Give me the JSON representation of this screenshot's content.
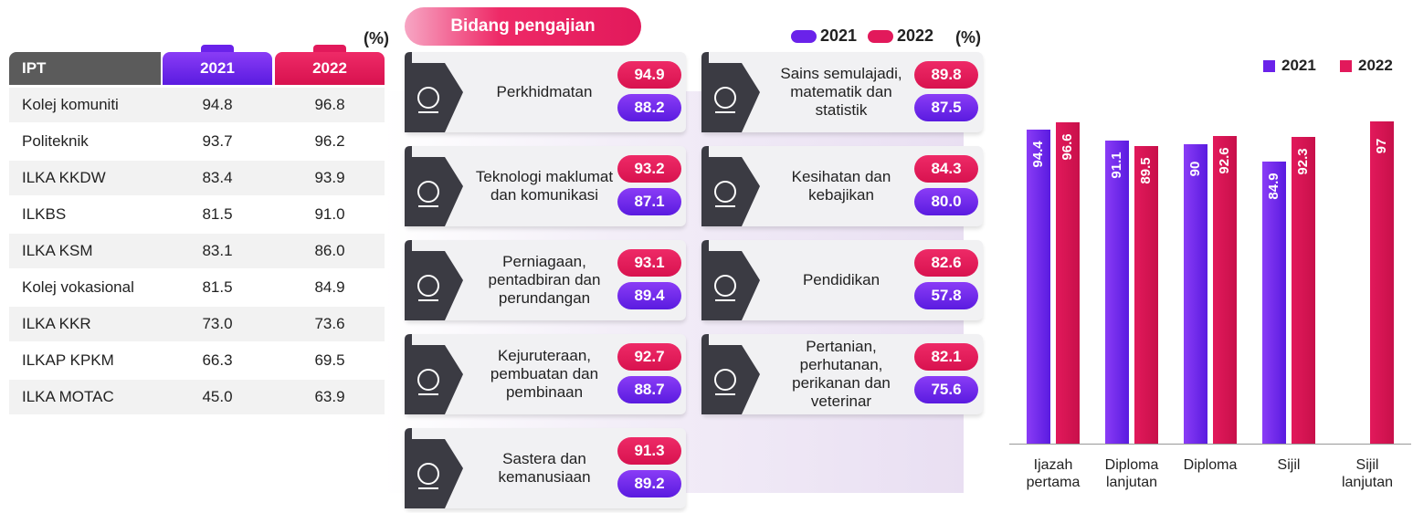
{
  "table": {
    "unit": "(%)",
    "header": [
      "IPT",
      "2021",
      "2022"
    ],
    "rows": [
      [
        "Kolej komuniti",
        "94.8",
        "96.8"
      ],
      [
        "Politeknik",
        "93.7",
        "96.2"
      ],
      [
        "ILKA KKDW",
        "83.4",
        "93.9"
      ],
      [
        "ILKBS",
        "81.5",
        "91.0"
      ],
      [
        "ILKA KSM",
        "83.1",
        "86.0"
      ],
      [
        "Kolej vokasional",
        "81.5",
        "84.9"
      ],
      [
        "ILKA KKR",
        "73.0",
        "73.6"
      ],
      [
        "ILKAP KPKM",
        "66.3",
        "69.5"
      ],
      [
        "ILKA MOTAC",
        "45.0",
        "63.9"
      ]
    ]
  },
  "fields_section": {
    "title": "Bidang pengajian",
    "legend": [
      "2021",
      "2022"
    ],
    "unit": "(%)",
    "fields": [
      {
        "label": "Perkhidmatan",
        "v2022": "94.9",
        "v2021": "88.2"
      },
      {
        "label": "Teknologi maklumat dan komunikasi",
        "v2022": "93.2",
        "v2021": "87.1"
      },
      {
        "label": "Perniagaan, pentadbiran dan perundangan",
        "v2022": "93.1",
        "v2021": "89.4"
      },
      {
        "label": "Kejuruteraan, pembuatan dan pembinaan",
        "v2022": "92.7",
        "v2021": "88.7"
      },
      {
        "label": "Sastera dan kemanusiaan",
        "v2022": "91.3",
        "v2021": "89.2"
      },
      {
        "label": "Sains semulajadi, matematik dan statistik",
        "v2022": "89.8",
        "v2021": "87.5"
      },
      {
        "label": "Kesihatan dan kebajikan",
        "v2022": "84.3",
        "v2021": "80.0"
      },
      {
        "label": "Pendidikan",
        "v2022": "82.6",
        "v2021": "57.8"
      },
      {
        "label": "Pertanian, perhutanan, perikanan dan veterinar",
        "v2022": "82.1",
        "v2021": "75.6"
      }
    ]
  },
  "chart_data": {
    "type": "bar",
    "categories": [
      "Ijazah pertama",
      "Diploma lanjutan",
      "Diploma",
      "Sijil",
      "Sijil lanjutan"
    ],
    "series": [
      {
        "name": "2021",
        "color": "#6a22ea",
        "values": [
          94.4,
          91.1,
          90.0,
          84.9,
          null
        ]
      },
      {
        "name": "2022",
        "color": "#e2195b",
        "values": [
          96.6,
          89.5,
          92.6,
          92.3,
          97.0
        ]
      }
    ],
    "ylim": [
      0,
      100
    ],
    "legend": "top-right"
  }
}
